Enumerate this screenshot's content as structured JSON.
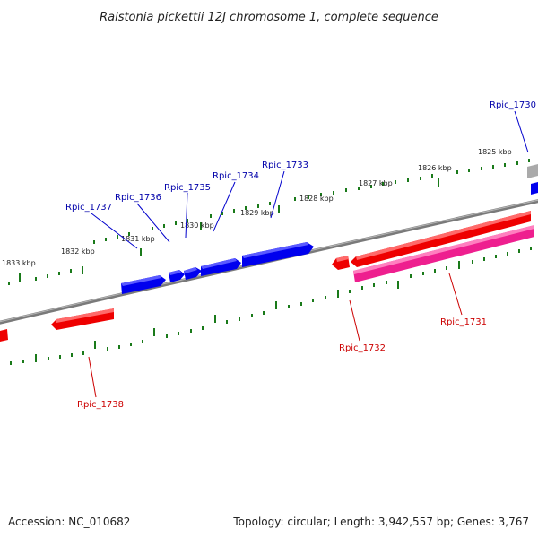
{
  "title": "Ralstonia pickettii 12J chromosome 1, complete sequence",
  "footer": {
    "accession": "Accession: NC_010682",
    "summary": "Topology: circular; Length: 3,942,557 bp; Genes: 3,767"
  },
  "colors": {
    "forward_gene": "#0000ee",
    "reverse_gene": "#ee0000",
    "reverse_gene_alt": "#ee1f8f",
    "backbone": "#777777",
    "ticks": "#1a7a1a",
    "forward_label": "#0000aa",
    "reverse_label": "#cc0000"
  },
  "scale_labels": [
    "1825 kbp",
    "1826 kbp",
    "1827 kbp",
    "1828 kbp",
    "1829 kbp",
    "1830 kbp",
    "1831 kbp",
    "1832 kbp",
    "1833 kbp"
  ],
  "forward_genes": [
    {
      "name": "Rpic_1730"
    },
    {
      "name": "Rpic_1733"
    },
    {
      "name": "Rpic_1734"
    },
    {
      "name": "Rpic_1735"
    },
    {
      "name": "Rpic_1736"
    },
    {
      "name": "Rpic_1737"
    }
  ],
  "reverse_genes": [
    {
      "name": "Rpic_1731"
    },
    {
      "name": "Rpic_1732"
    },
    {
      "name": "Rpic_1738"
    }
  ]
}
